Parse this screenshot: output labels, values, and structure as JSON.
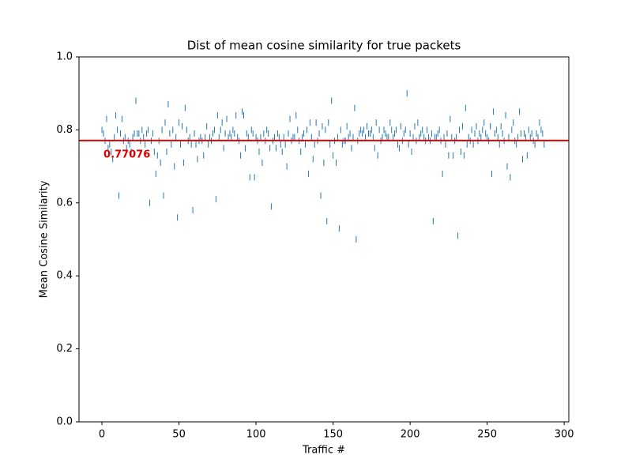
{
  "chart_data": {
    "type": "scatter",
    "title": "Dist of mean cosine similarity for true packets",
    "x_label": "Traffic #",
    "y_label": "Mean Cosine Similarity",
    "xlim": [
      -14.9,
      303.0
    ],
    "ylim": [
      0,
      1
    ],
    "xticks": [
      0,
      50,
      100,
      150,
      200,
      250,
      300
    ],
    "yticks": [
      {
        "value": 0,
        "label": "0.0"
      },
      {
        "value": 0.2,
        "label": "0.2"
      },
      {
        "value": 0.4,
        "label": "0.4"
      },
      {
        "value": 0.6,
        "label": "0.6"
      },
      {
        "value": 0.8,
        "label": "0.8"
      },
      {
        "value": 1,
        "label": "1.0"
      }
    ],
    "grid": false,
    "color": "#1f77b4",
    "hline": {
      "value": 0.77076,
      "color": "#e00000"
    },
    "x": [
      0,
      1,
      2,
      3,
      4,
      5,
      6,
      7,
      8,
      9,
      10,
      11,
      12,
      13,
      14,
      15,
      16,
      17,
      18,
      19,
      20,
      21,
      22,
      23,
      24,
      25,
      26,
      27,
      28,
      29,
      30,
      31,
      32,
      33,
      34,
      35,
      36,
      37,
      38,
      39,
      40,
      41,
      42,
      43,
      44,
      45,
      46,
      47,
      48,
      49,
      50,
      51,
      52,
      53,
      54,
      55,
      56,
      57,
      58,
      59,
      60,
      61,
      62,
      63,
      64,
      65,
      66,
      67,
      68,
      69,
      70,
      71,
      72,
      73,
      74,
      75,
      76,
      77,
      78,
      79,
      80,
      81,
      82,
      83,
      84,
      85,
      86,
      87,
      88,
      89,
      90,
      91,
      92,
      93,
      94,
      95,
      96,
      97,
      98,
      99,
      100,
      101,
      102,
      103,
      104,
      105,
      106,
      107,
      108,
      109,
      110,
      111,
      112,
      113,
      114,
      115,
      116,
      117,
      118,
      119,
      120,
      121,
      122,
      123,
      124,
      125,
      126,
      127,
      128,
      129,
      130,
      131,
      132,
      133,
      134,
      135,
      136,
      137,
      138,
      139,
      140,
      141,
      142,
      143,
      144,
      145,
      146,
      147,
      148,
      149,
      150,
      151,
      152,
      153,
      154,
      155,
      156,
      157,
      158,
      159,
      160,
      161,
      162,
      163,
      164,
      165,
      166,
      167,
      168,
      169,
      170,
      171,
      172,
      173,
      174,
      175,
      176,
      177,
      178,
      179,
      180,
      181,
      182,
      183,
      184,
      185,
      186,
      187,
      188,
      189,
      190,
      191,
      192,
      193,
      194,
      195,
      196,
      197,
      198,
      199,
      200,
      201,
      202,
      203,
      204,
      205,
      206,
      207,
      208,
      209,
      210,
      211,
      212,
      213,
      214,
      215,
      216,
      217,
      218,
      219,
      220,
      221,
      222,
      223,
      224,
      225,
      226,
      227,
      228,
      229,
      230,
      231,
      232,
      233,
      234,
      235,
      236,
      237,
      238,
      239,
      240,
      241,
      242,
      243,
      244,
      245,
      246,
      247,
      248,
      249,
      250,
      251,
      252,
      253,
      254,
      255,
      256,
      257,
      258,
      259,
      260,
      261,
      262,
      263,
      264,
      265,
      266,
      267,
      268,
      269,
      270,
      271,
      272,
      273,
      274,
      275,
      276,
      277,
      278,
      279,
      280,
      281,
      282,
      283,
      284,
      285,
      286,
      287
    ],
    "values": [
      0.8,
      0.79,
      0.77,
      0.83,
      0.75,
      0.76,
      0.74,
      0.72,
      0.78,
      0.84,
      0.8,
      0.62,
      0.79,
      0.83,
      0.77,
      0.78,
      0.75,
      0.77,
      0.76,
      0.74,
      0.78,
      0.79,
      0.88,
      0.79,
      0.79,
      0.77,
      0.8,
      0.78,
      0.76,
      0.79,
      0.8,
      0.6,
      0.77,
      0.79,
      0.74,
      0.68,
      0.73,
      0.77,
      0.71,
      0.8,
      0.62,
      0.82,
      0.74,
      0.87,
      0.79,
      0.76,
      0.8,
      0.7,
      0.78,
      0.56,
      0.82,
      0.76,
      0.81,
      0.71,
      0.86,
      0.8,
      0.77,
      0.78,
      0.76,
      0.58,
      0.79,
      0.76,
      0.72,
      0.77,
      0.78,
      0.77,
      0.73,
      0.78,
      0.81,
      0.76,
      0.78,
      0.77,
      0.79,
      0.8,
      0.61,
      0.84,
      0.78,
      0.8,
      0.82,
      0.75,
      0.79,
      0.83,
      0.78,
      0.79,
      0.78,
      0.8,
      0.79,
      0.84,
      0.78,
      0.77,
      0.73,
      0.85,
      0.84,
      0.75,
      0.79,
      0.78,
      0.67,
      0.8,
      0.79,
      0.67,
      0.78,
      0.77,
      0.74,
      0.78,
      0.71,
      0.79,
      0.77,
      0.8,
      0.79,
      0.75,
      0.59,
      0.77,
      0.78,
      0.75,
      0.79,
      0.78,
      0.76,
      0.74,
      0.78,
      0.76,
      0.7,
      0.79,
      0.83,
      0.77,
      0.78,
      0.78,
      0.84,
      0.8,
      0.77,
      0.74,
      0.78,
      0.79,
      0.76,
      0.8,
      0.68,
      0.82,
      0.78,
      0.72,
      0.76,
      0.82,
      0.77,
      0.79,
      0.62,
      0.81,
      0.71,
      0.8,
      0.55,
      0.82,
      0.76,
      0.88,
      0.73,
      0.77,
      0.71,
      0.78,
      0.53,
      0.8,
      0.76,
      0.77,
      0.77,
      0.81,
      0.78,
      0.79,
      0.75,
      0.78,
      0.86,
      0.5,
      0.77,
      0.79,
      0.8,
      0.79,
      0.8,
      0.78,
      0.81,
      0.79,
      0.79,
      0.8,
      0.78,
      0.75,
      0.82,
      0.73,
      0.8,
      0.77,
      0.78,
      0.8,
      0.79,
      0.78,
      0.78,
      0.82,
      0.8,
      0.78,
      0.79,
      0.8,
      0.76,
      0.75,
      0.81,
      0.77,
      0.79,
      0.8,
      0.9,
      0.76,
      0.79,
      0.74,
      0.78,
      0.81,
      0.77,
      0.82,
      0.78,
      0.79,
      0.8,
      0.78,
      0.77,
      0.8,
      0.78,
      0.77,
      0.79,
      0.55,
      0.78,
      0.78,
      0.79,
      0.8,
      0.77,
      0.68,
      0.78,
      0.76,
      0.79,
      0.73,
      0.83,
      0.78,
      0.73,
      0.77,
      0.78,
      0.51,
      0.8,
      0.74,
      0.81,
      0.73,
      0.86,
      0.76,
      0.78,
      0.77,
      0.8,
      0.76,
      0.79,
      0.81,
      0.77,
      0.79,
      0.78,
      0.8,
      0.82,
      0.79,
      0.78,
      0.77,
      0.81,
      0.68,
      0.85,
      0.79,
      0.8,
      0.78,
      0.76,
      0.81,
      0.79,
      0.77,
      0.84,
      0.7,
      0.78,
      0.67,
      0.8,
      0.82,
      0.77,
      0.76,
      0.78,
      0.85,
      0.79,
      0.72,
      0.79,
      0.78,
      0.73,
      0.8,
      0.78,
      0.79,
      0.77,
      0.76,
      0.79,
      0.78,
      0.82,
      0.8,
      0.79,
      0.76
    ]
  }
}
